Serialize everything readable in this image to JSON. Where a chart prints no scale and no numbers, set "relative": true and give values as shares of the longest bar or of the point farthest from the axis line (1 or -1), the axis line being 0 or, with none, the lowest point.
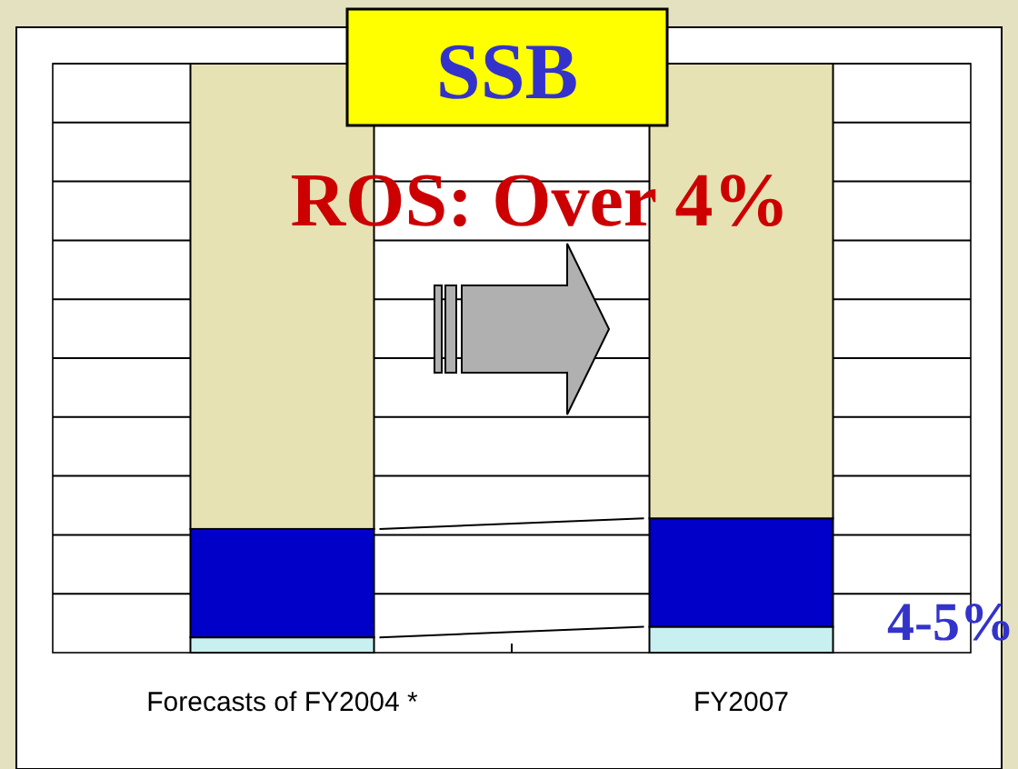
{
  "chart_data": {
    "type": "bar",
    "title": "SSB",
    "relative": true,
    "stacked": true,
    "grid": "y",
    "categories": [
      "Forecasts of FY2004 *",
      "FY2007"
    ],
    "series": [
      {
        "color": "#c8f0f0",
        "values": [
          0.026,
          0.044
        ]
      },
      {
        "color": "#0000c8",
        "values": [
          0.184,
          0.184
        ]
      },
      {
        "color": "#e6e2b4",
        "values": [
          0.79,
          0.772
        ]
      }
    ],
    "annotations": [
      "ROS: Over 4%",
      "4-5%"
    ]
  }
}
